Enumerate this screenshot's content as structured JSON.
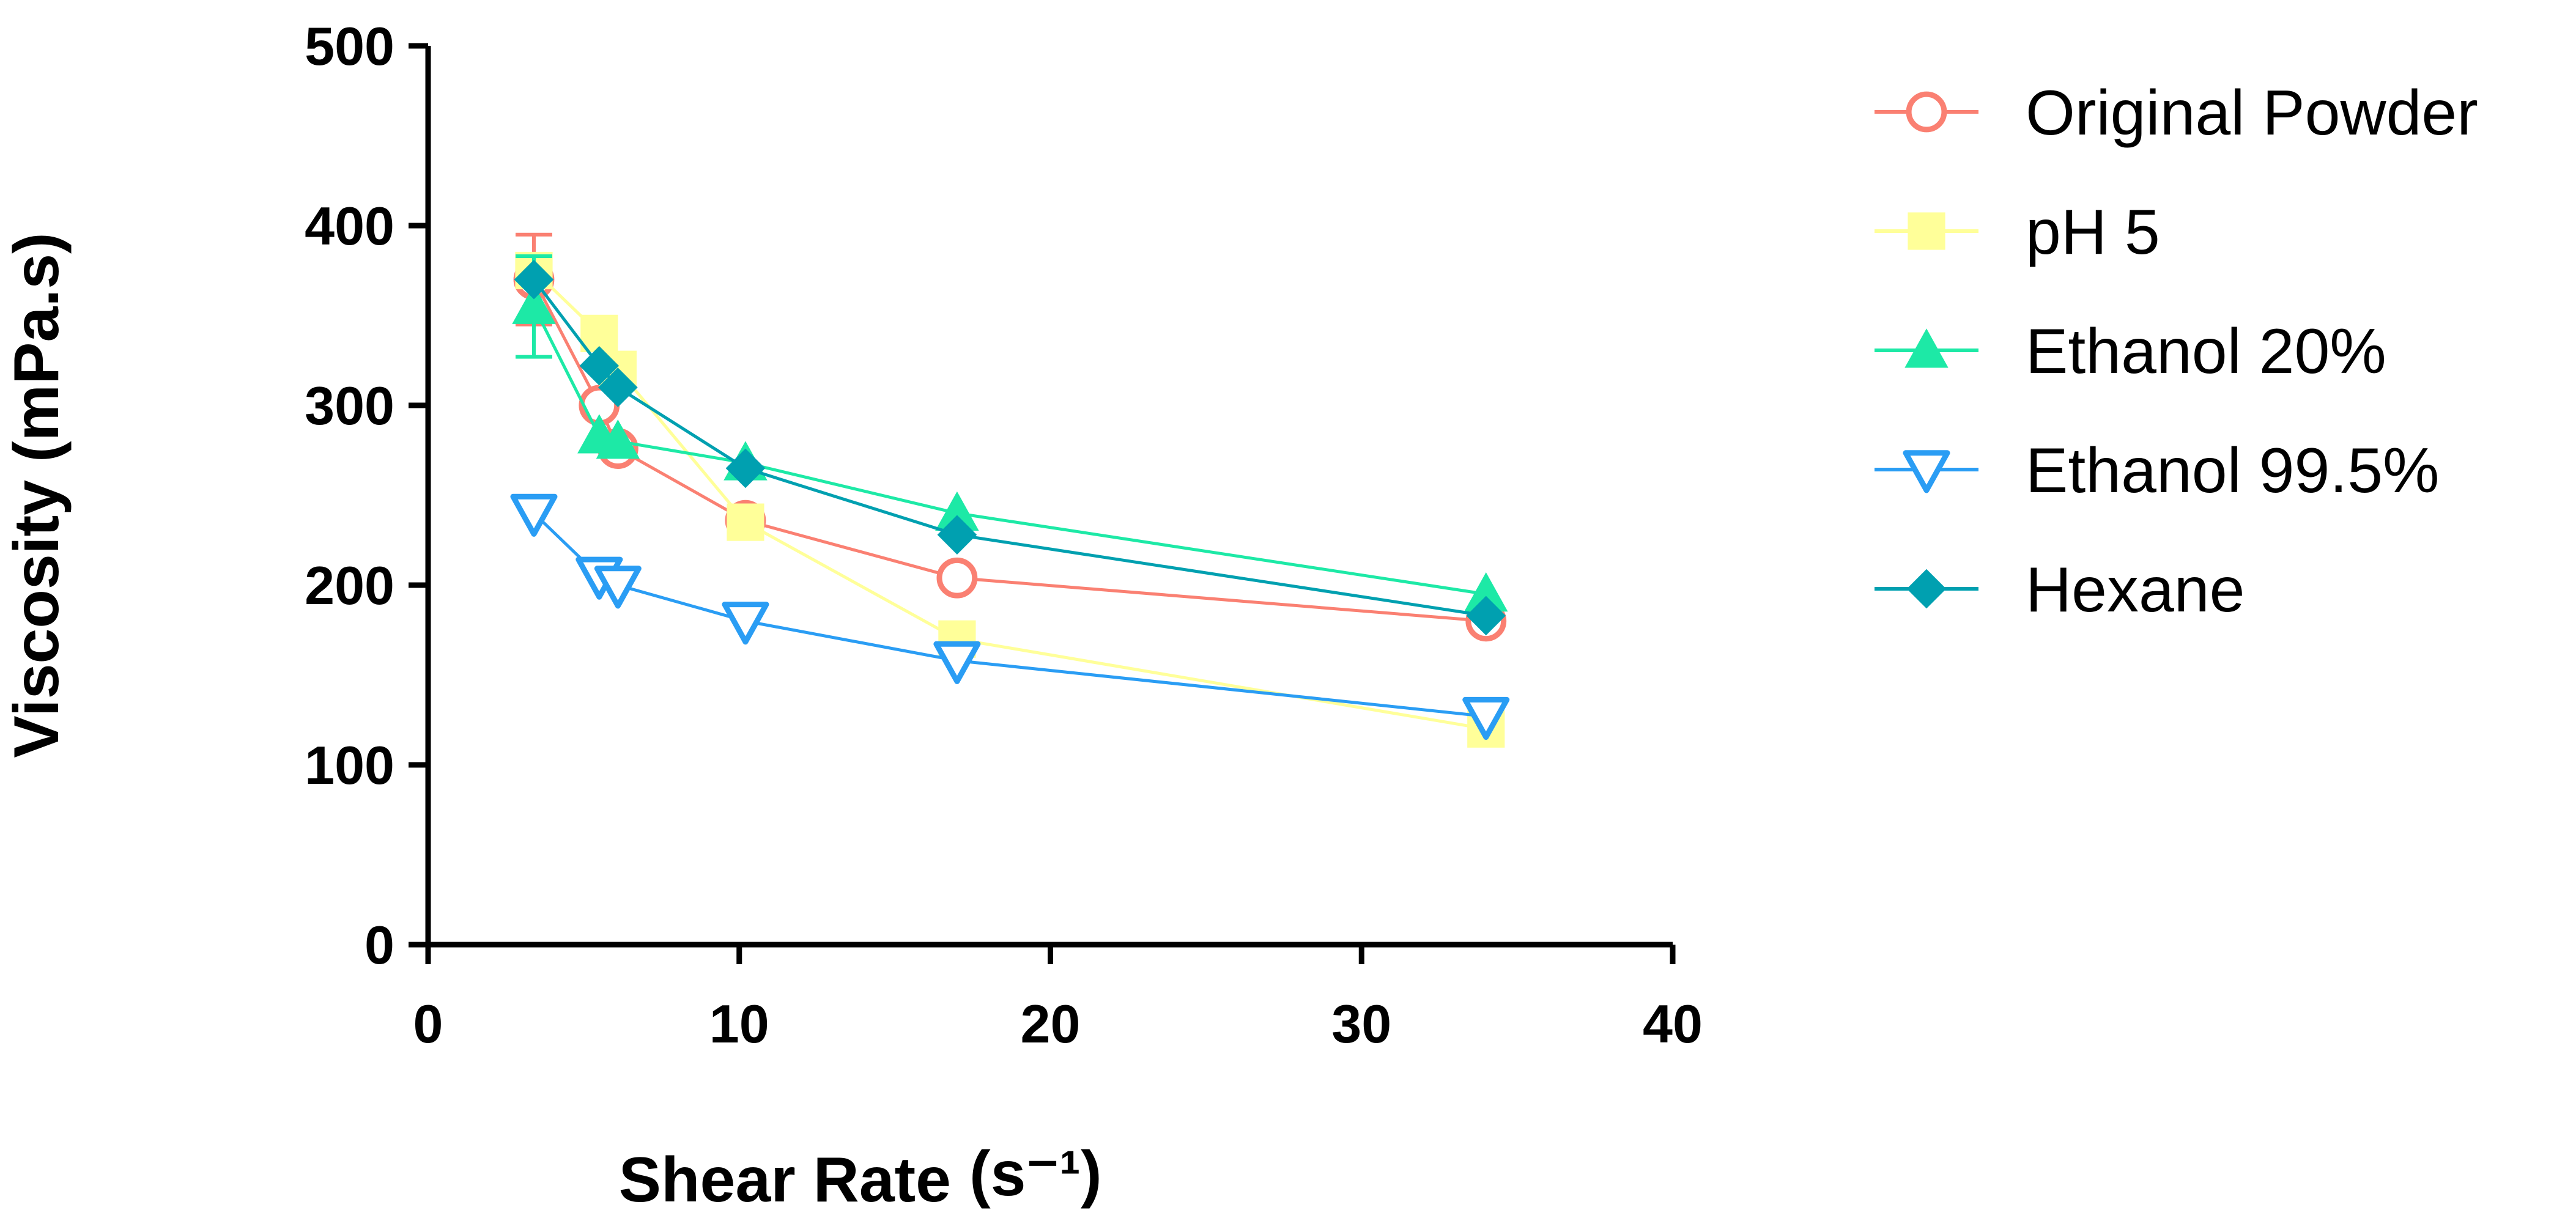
{
  "chart_data": {
    "type": "line",
    "title": "",
    "xlabel": "Shear Rate",
    "xlabel_unit": "(s⁻¹)",
    "ylabel": "Viscosity (mPa.s)",
    "xlim": [
      0,
      40
    ],
    "ylim": [
      0,
      500
    ],
    "x_ticks": [
      "0",
      "10",
      "20",
      "30",
      "40"
    ],
    "y_ticks": [
      "0",
      "100",
      "200",
      "300",
      "400",
      "500"
    ],
    "grid": false,
    "legend_position": "right",
    "x": [
      3.4,
      5.5,
      6.1,
      10.2,
      17.0,
      34.0
    ],
    "series": [
      {
        "name": "Original Powder",
        "color": "#fa8072",
        "marker": "circle-open",
        "values": [
          370,
          300,
          276,
          236,
          204,
          180
        ],
        "error": [
          25,
          0,
          0,
          0,
          0,
          0
        ]
      },
      {
        "name": "pH 5",
        "color": "#ffff99",
        "marker": "square-filled",
        "values": [
          375,
          340,
          320,
          235,
          170,
          120
        ],
        "error": [
          0,
          0,
          0,
          0,
          0,
          0
        ]
      },
      {
        "name": "Ethanol 20%",
        "color": "#1de9a6",
        "marker": "triangle-up-filled",
        "values": [
          355,
          283,
          280,
          268,
          240,
          195
        ],
        "error": [
          28,
          0,
          0,
          0,
          0,
          0
        ]
      },
      {
        "name": "Ethanol 99.5%",
        "color": "#2a9df4",
        "marker": "triangle-down-open",
        "values": [
          240,
          205,
          200,
          180,
          158,
          127
        ],
        "error": [
          0,
          0,
          0,
          0,
          0,
          0
        ]
      },
      {
        "name": "Hexane",
        "color": "#00a0b0",
        "marker": "diamond-filled",
        "values": [
          370,
          322,
          310,
          265,
          228,
          183
        ],
        "error": [
          0,
          0,
          0,
          0,
          0,
          0
        ]
      }
    ]
  }
}
